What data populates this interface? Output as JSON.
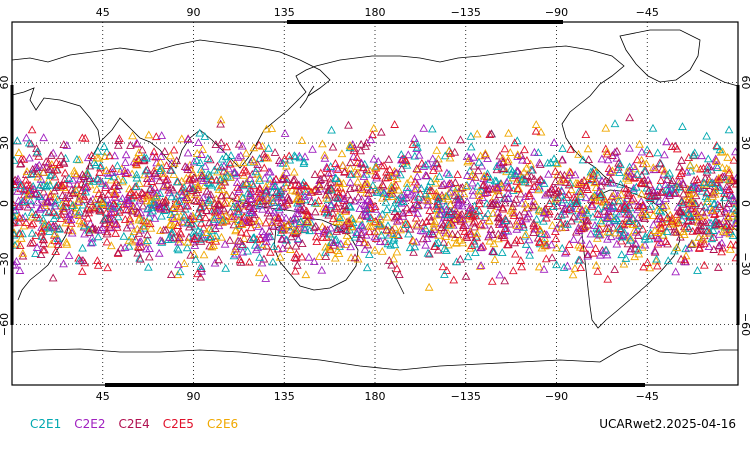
{
  "map": {
    "projection": "equirectangular",
    "center_longitude": 180,
    "lon_range": [
      0,
      360
    ],
    "lat_range": [
      -90,
      90
    ],
    "grid": true,
    "top_lon_labels": [
      "45",
      "90",
      "135",
      "180",
      "−135",
      "−90",
      "−45"
    ],
    "bottom_lon_labels": [
      "45",
      "90",
      "135",
      "180",
      "−135",
      "−90",
      "−45"
    ],
    "lon_label_values": [
      45,
      90,
      135,
      180,
      225,
      270,
      315
    ],
    "lat_labels": [
      "60",
      "30",
      "0",
      "−30",
      "−60"
    ],
    "lat_label_values": [
      60,
      30,
      0,
      -30,
      -60
    ]
  },
  "legend": [
    {
      "name": "C2E1",
      "color": "#00a8b0"
    },
    {
      "name": "C2E2",
      "color": "#a020c0"
    },
    {
      "name": "C2E4",
      "color": "#b01050"
    },
    {
      "name": "C2E5",
      "color": "#e0102a"
    },
    {
      "name": "C2E6",
      "color": "#f0a800"
    }
  ],
  "footer": {
    "label": "UCARwet2.2025-04-16"
  },
  "observations": {
    "marker": "triangle-icon",
    "lat_band": [
      -45,
      45
    ],
    "approx_count": 3000
  }
}
